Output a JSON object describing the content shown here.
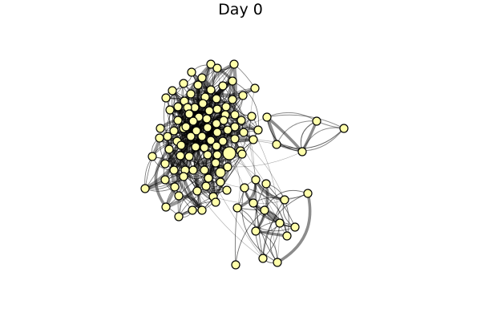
{
  "figure": {
    "title": "Day 0"
  },
  "style": {
    "node_fill": "#ffffaa",
    "node_stroke": "#000000",
    "edge_color": "#000000",
    "background": "#ffffff"
  },
  "network": {
    "node_count": 116,
    "clusters": [
      "main",
      "upper-right",
      "lower-right"
    ]
  }
}
